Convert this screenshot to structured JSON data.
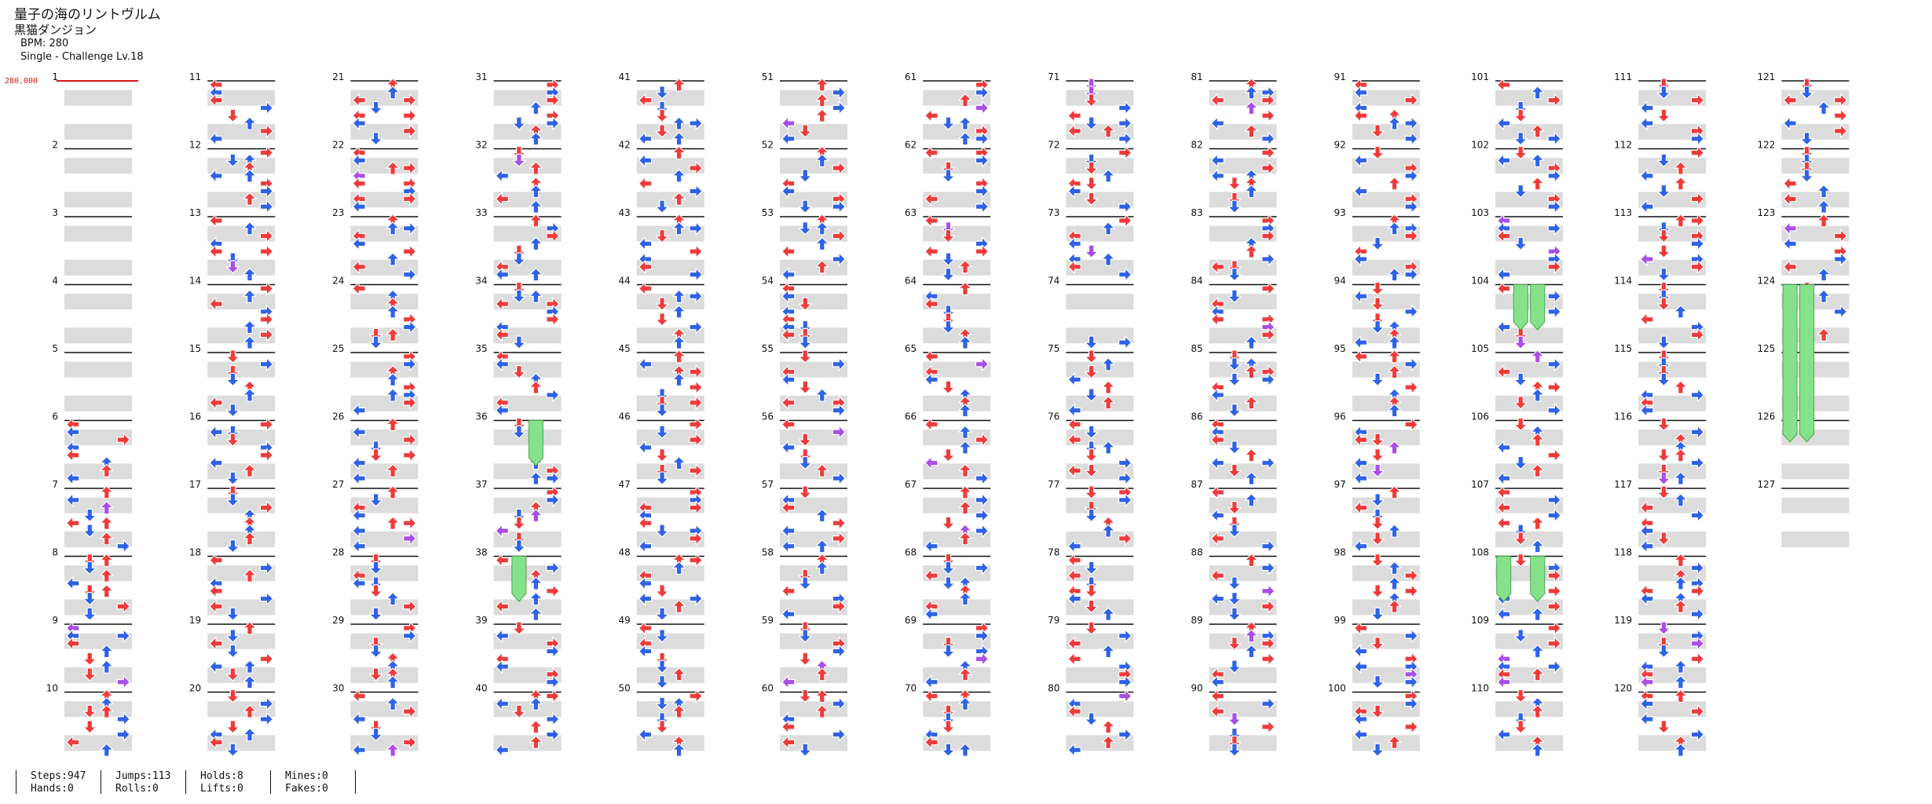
{
  "header": {
    "title": "量子の海のリントヴルム",
    "artist": "黒猫ダンジョン",
    "bpm": "BPM: 280",
    "difficulty": "Single - Challenge  Lv.18"
  },
  "bpm_marker": "280.000",
  "total_measures": 127,
  "stats": {
    "steps": "Steps:947",
    "jumps": "Jumps:113",
    "holds": "Holds:8",
    "mines": "Mines:0",
    "hands": "Hands:0",
    "rolls": "Rolls:0",
    "lifts": "Lifts:0",
    "fakes": "Fakes:0"
  },
  "colors": {
    "quarter": "#ef3b3b",
    "eighth": "#2f62e6",
    "sixteenth": "#a94ee8",
    "hold": "#86e28a",
    "band": "#dcdcdc",
    "bpm": "#d81818"
  },
  "note_icons": [
    "left-arrow-icon",
    "down-arrow-icon",
    "up-arrow-icon",
    "right-arrow-icon"
  ],
  "hold_icon": "hold-freeze-icon"
}
